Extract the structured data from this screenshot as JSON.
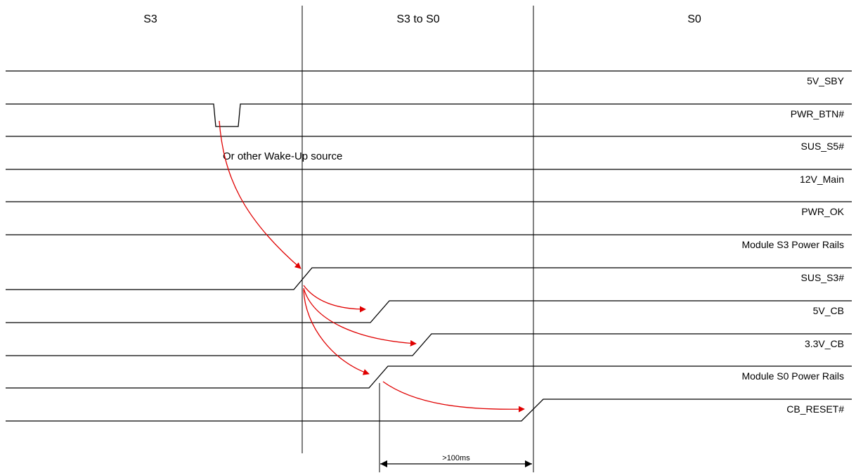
{
  "phases": {
    "s3": "S3",
    "transition": "S3 to S0",
    "s0": "S0"
  },
  "signals": [
    "5V_SBY",
    "PWR_BTN#",
    "SUS_S5#",
    "12V_Main",
    "PWR_OK",
    "Module S3 Power Rails",
    "SUS_S3#",
    "5V_CB",
    "3.3V_CB",
    "Module S0 Power Rails",
    "CB_RESET#"
  ],
  "annotations": {
    "wake_source": "Or other Wake-Up source",
    "delay": ">100ms"
  },
  "colors": {
    "arrow": "#e00000",
    "line": "#000000"
  }
}
